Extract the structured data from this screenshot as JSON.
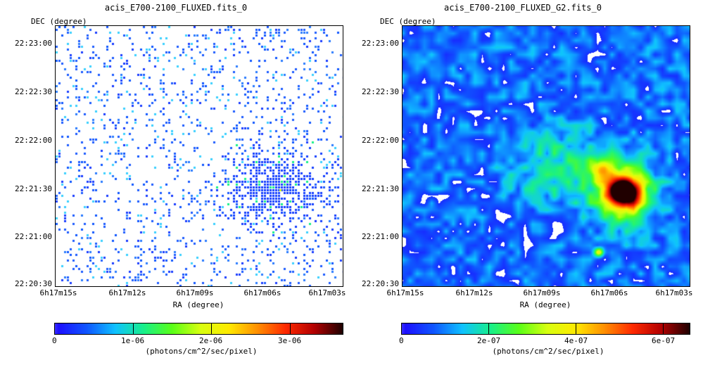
{
  "left_panel": {
    "title": "acis_E700-2100_FLUXED.fits_0",
    "dec_label": "DEC (degree)",
    "ra_label": "RA (degree)",
    "dec_ticks": [
      "22:23:00",
      "22:22:30",
      "22:22:00",
      "22:21:30",
      "22:21:00",
      "22:20:30"
    ],
    "ra_ticks": [
      "6h17m15s",
      "6h17m12s",
      "6h17m09s",
      "6h17m06s",
      "6h17m03s"
    ],
    "colorbar": {
      "ticks": [
        "0",
        "1e-06",
        "2e-06",
        "3e-06"
      ],
      "unit": "(photons/cm^2/sec/pixel)"
    }
  },
  "right_panel": {
    "title": "acis_E700-2100_FLUXED_G2.fits_0",
    "dec_label": "DEC (degree)",
    "ra_label": "RA (degree)",
    "dec_ticks": [
      "22:23:00",
      "22:22:30",
      "22:22:00",
      "22:21:30",
      "22:21:00",
      "22:20:30"
    ],
    "ra_ticks": [
      "6h17m15s",
      "6h17m12s",
      "6h17m09s",
      "6h17m06s",
      "6h17m03s"
    ],
    "colorbar": {
      "ticks": [
        "0",
        "2e-07",
        "4e-07",
        "6e-07"
      ],
      "unit": "(photons/cm^2/sec/pixel)"
    }
  },
  "colors": {
    "colormap": [
      "#ffffff",
      "#1d10ff",
      "#0f57ff",
      "#0fc2ff",
      "#18f08a",
      "#5aff18",
      "#d8ff10",
      "#ffea00",
      "#ff9000",
      "#ff2a00",
      "#b30000",
      "#200000"
    ]
  }
}
